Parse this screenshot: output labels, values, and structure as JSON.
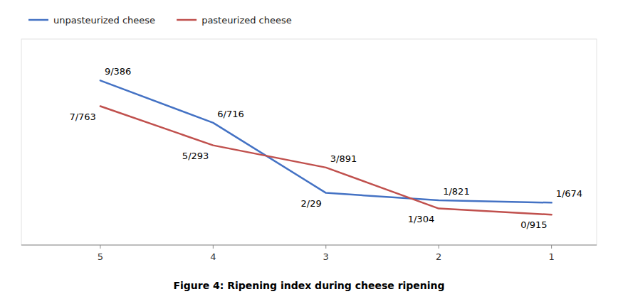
{
  "chart_data": {
    "type": "line",
    "title": "Figure 4: Ripening index during cheese ripening",
    "x": [
      5,
      4,
      3,
      2,
      1
    ],
    "series": [
      {
        "name": "unpasteurized cheese",
        "color": "#4472C4",
        "values": [
          9.386,
          6.716,
          2.29,
          1.821,
          1.674
        ],
        "value_labels": [
          "9/386",
          "6/716",
          "2/29",
          "1/821",
          "1/674"
        ]
      },
      {
        "name": "pasteurized cheese",
        "color": "#C0504D",
        "values": [
          7.763,
          5.293,
          3.891,
          1.304,
          0.915
        ],
        "value_labels": [
          "7/763",
          "5/293",
          "3/891",
          "1/304",
          "0/915"
        ]
      }
    ],
    "xlim": [
      5.7,
      0.6
    ],
    "ylim": [
      -1.0,
      12.0
    ],
    "xticks": [
      5,
      4,
      3,
      2,
      1
    ],
    "tick_labels": "x",
    "data_labels": true,
    "legend": "upper-left",
    "grid": false
  }
}
